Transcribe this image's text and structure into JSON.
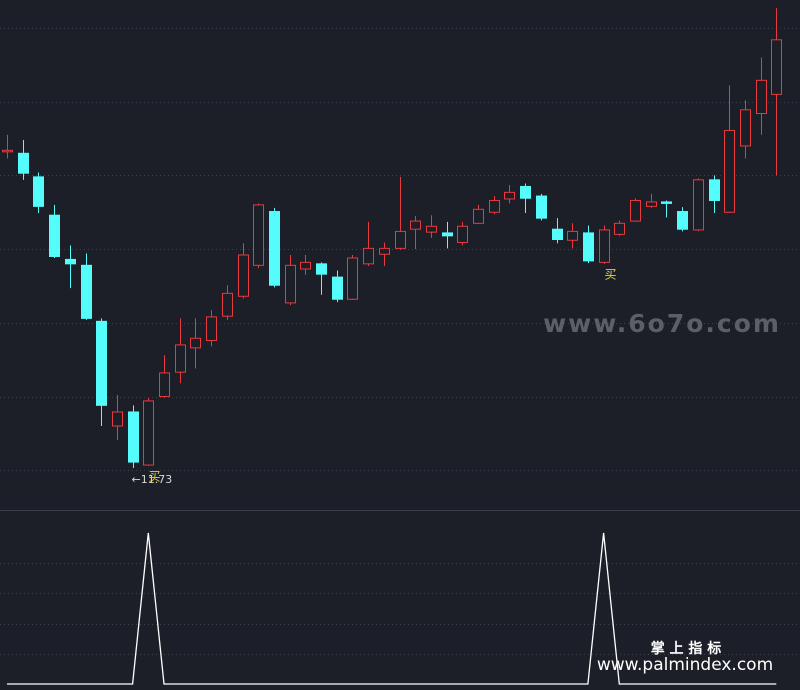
{
  "chart_data": [
    {
      "type": "candlestick",
      "open": [
        16.02,
        16.0,
        15.68,
        15.16,
        14.56,
        14.48,
        13.72,
        12.3,
        12.49,
        11.77,
        12.7,
        13.03,
        13.36,
        13.46,
        13.79,
        14.06,
        14.48,
        15.21,
        13.97,
        14.43,
        14.5,
        14.32,
        14.02,
        14.5,
        14.63,
        14.71,
        14.97,
        14.93,
        14.92,
        14.79,
        15.05,
        15.2,
        15.38,
        15.55,
        15.42,
        14.97,
        14.82,
        14.92,
        14.52,
        14.9,
        15.08,
        15.28,
        15.34,
        15.21,
        14.96,
        15.64,
        15.2,
        16.1,
        16.54,
        16.8
      ],
      "high": [
        16.25,
        16.18,
        15.74,
        15.3,
        14.75,
        14.64,
        13.76,
        12.72,
        12.58,
        12.68,
        13.26,
        13.76,
        13.76,
        13.87,
        14.21,
        14.78,
        15.32,
        15.26,
        14.62,
        14.62,
        14.52,
        14.41,
        14.62,
        15.07,
        14.79,
        15.68,
        15.15,
        15.16,
        15.07,
        15.07,
        15.3,
        15.42,
        15.57,
        15.59,
        15.45,
        15.12,
        15.05,
        15.02,
        15.02,
        15.09,
        15.39,
        15.45,
        15.36,
        15.27,
        15.66,
        15.7,
        16.92,
        16.72,
        17.3,
        17.97
      ],
      "low": [
        15.93,
        15.64,
        15.19,
        14.58,
        14.17,
        13.74,
        12.3,
        12.11,
        11.73,
        11.76,
        12.68,
        12.88,
        13.08,
        13.38,
        13.74,
        14.03,
        14.44,
        14.18,
        13.94,
        14.35,
        14.08,
        13.98,
        14.01,
        14.47,
        14.47,
        14.69,
        14.7,
        14.85,
        14.71,
        14.75,
        15.04,
        15.17,
        15.32,
        15.19,
        15.09,
        14.78,
        14.71,
        14.51,
        14.5,
        14.88,
        15.07,
        15.26,
        15.13,
        14.94,
        14.94,
        15.19,
        15.19,
        15.93,
        16.25,
        15.7
      ],
      "close": [
        16.04,
        15.73,
        15.28,
        14.6,
        14.5,
        13.76,
        12.58,
        12.49,
        11.81,
        12.64,
        13.02,
        13.4,
        13.49,
        13.78,
        14.1,
        14.62,
        15.3,
        14.21,
        14.48,
        14.52,
        14.36,
        14.02,
        14.58,
        14.71,
        14.71,
        14.94,
        15.08,
        15.01,
        14.88,
        15.01,
        15.24,
        15.36,
        15.47,
        15.39,
        15.12,
        14.83,
        14.94,
        14.54,
        14.96,
        15.05,
        15.36,
        15.34,
        15.32,
        14.97,
        15.64,
        15.36,
        16.31,
        16.59,
        16.99,
        17.54
      ],
      "low_labels": [
        null,
        null,
        null,
        null,
        null,
        null,
        null,
        null,
        "←11.73",
        null,
        null,
        null,
        null,
        null,
        null,
        null,
        null,
        null,
        null,
        null,
        null,
        null,
        null,
        null,
        null,
        null,
        null,
        null,
        null,
        null,
        null,
        null,
        null,
        null,
        null,
        null,
        null,
        null,
        null,
        null,
        null,
        null,
        null,
        null,
        null,
        null,
        null,
        null,
        null,
        null
      ],
      "signal_labels": [
        null,
        null,
        null,
        null,
        null,
        null,
        null,
        null,
        null,
        "买",
        null,
        null,
        null,
        null,
        null,
        null,
        null,
        null,
        null,
        null,
        null,
        null,
        null,
        null,
        null,
        null,
        null,
        null,
        null,
        null,
        null,
        null,
        null,
        null,
        null,
        null,
        null,
        null,
        "买",
        null,
        null,
        null,
        null,
        null,
        null,
        null,
        null,
        null,
        null,
        null
      ],
      "up_color": "#e8393c",
      "down_color": "#54fcfc",
      "ylim": [
        11.16,
        18.08
      ],
      "yticks": [
        11.7,
        12.7,
        13.7,
        14.7,
        15.7,
        16.7,
        17.7
      ],
      "grid": true
    },
    {
      "type": "line",
      "color": "#ffffff",
      "values": [
        0,
        0,
        0,
        0,
        0,
        0,
        0,
        0,
        0,
        1,
        0,
        0,
        0,
        0,
        0,
        0,
        0,
        0,
        0,
        0,
        0,
        0,
        0,
        0,
        0,
        0,
        0,
        0,
        0,
        0,
        0,
        0,
        0,
        0,
        0,
        0,
        0,
        0,
        1,
        0,
        0,
        0,
        0,
        0,
        0,
        0,
        0,
        0,
        0,
        0
      ],
      "ylim": [
        0,
        1
      ],
      "yticks": [
        0.2,
        0.4,
        0.6,
        0.8
      ],
      "grid": true
    }
  ],
  "watermarks": [
    "www.6o7o.com",
    "掌 上 指 标",
    "www.palmindex.com"
  ]
}
